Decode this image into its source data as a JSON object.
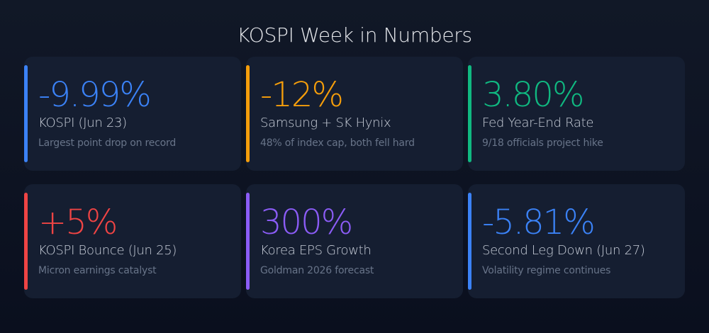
{
  "title": "KOSPI Week in Numbers",
  "cards": [
    {
      "value": "-9.99%",
      "label": "KOSPI (Jun 23)",
      "sub": "Largest point drop on record",
      "color": "#3b82f6"
    },
    {
      "value": "-12%",
      "label": "Samsung + SK Hynix",
      "sub": "48% of index cap, both fell hard",
      "color": "#f59e0b"
    },
    {
      "value": "3.80%",
      "label": "Fed Year-End Rate",
      "sub": "9/18 officials project hike",
      "color": "#10b981"
    },
    {
      "value": "+5%",
      "label": "KOSPI Bounce (Jun 25)",
      "sub": "Micron earnings catalyst",
      "color": "#ef4444"
    },
    {
      "value": "300%",
      "label": "Korea EPS Growth",
      "sub": "Goldman 2026 forecast",
      "color": "#8b5cf6"
    },
    {
      "value": "-5.81%",
      "label": "Second Leg Down (Jun 27)",
      "sub": "Volatility regime continues",
      "color": "#3b82f6"
    }
  ]
}
